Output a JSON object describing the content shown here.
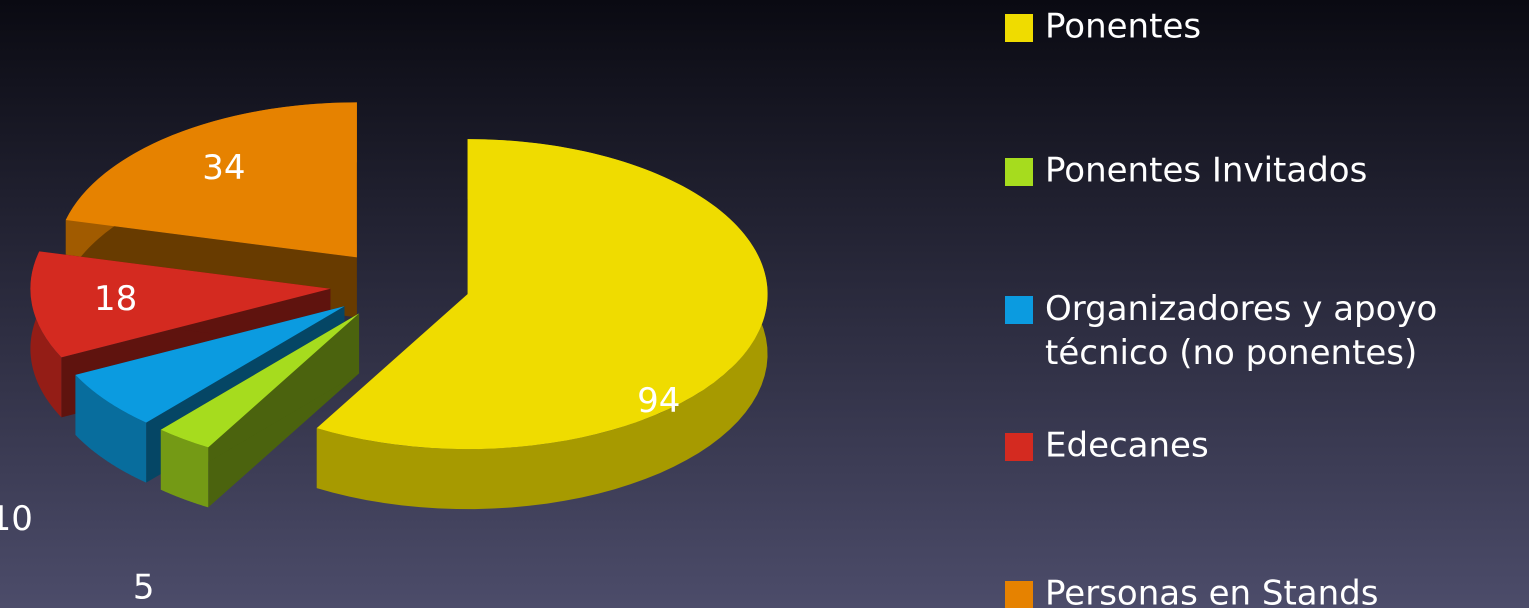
{
  "chart_data": {
    "type": "pie",
    "categories": [
      "Ponentes",
      "Ponentes Invitados",
      "Organizadores y apoyo técnico (no ponentes)",
      "Edecanes",
      "Personas en Stands"
    ],
    "values": [
      94,
      5,
      10,
      18,
      34
    ],
    "colors": [
      "#efdc00",
      "#a6dc1e",
      "#0b9be0",
      "#d42a20",
      "#e68200"
    ],
    "legend": "right",
    "exploded": true,
    "three_d": true
  }
}
